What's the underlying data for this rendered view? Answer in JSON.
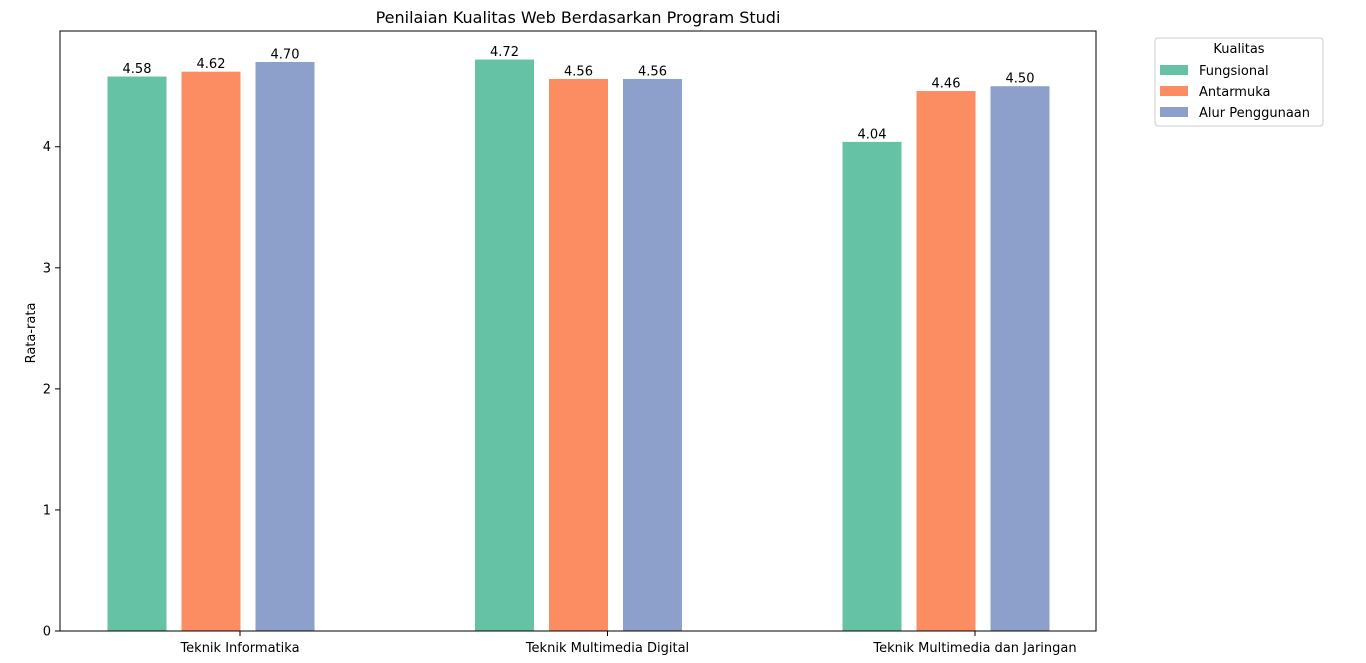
{
  "chart_data": {
    "type": "bar",
    "title": "Penilaian Kualitas Web Berdasarkan Program Studi",
    "xlabel": "",
    "ylabel": "Rata-rata",
    "categories": [
      "Teknik Informatika",
      "Teknik Multimedia Digital",
      "Teknik Multimedia dan Jaringan"
    ],
    "series": [
      {
        "name": "Fungsional",
        "values": [
          4.58,
          4.72,
          4.04
        ],
        "color": "#66c2a5"
      },
      {
        "name": "Antarmuka",
        "values": [
          4.62,
          4.56,
          4.46
        ],
        "color": "#fc8d62"
      },
      {
        "name": "Alur Penggunaan",
        "values": [
          4.7,
          4.56,
          4.5
        ],
        "color": "#8da0cb"
      }
    ],
    "data_labels": [
      [
        "4.58",
        "4.72",
        "4.04"
      ],
      [
        "4.62",
        "4.56",
        "4.46"
      ],
      [
        "4.70",
        "4.56",
        "4.50"
      ]
    ],
    "yticks": [
      0,
      1,
      2,
      3,
      4
    ],
    "ylim": [
      0,
      4.956
    ],
    "grid": false,
    "legend": {
      "title": "Kualitas",
      "placement": "outside-top-right"
    }
  }
}
